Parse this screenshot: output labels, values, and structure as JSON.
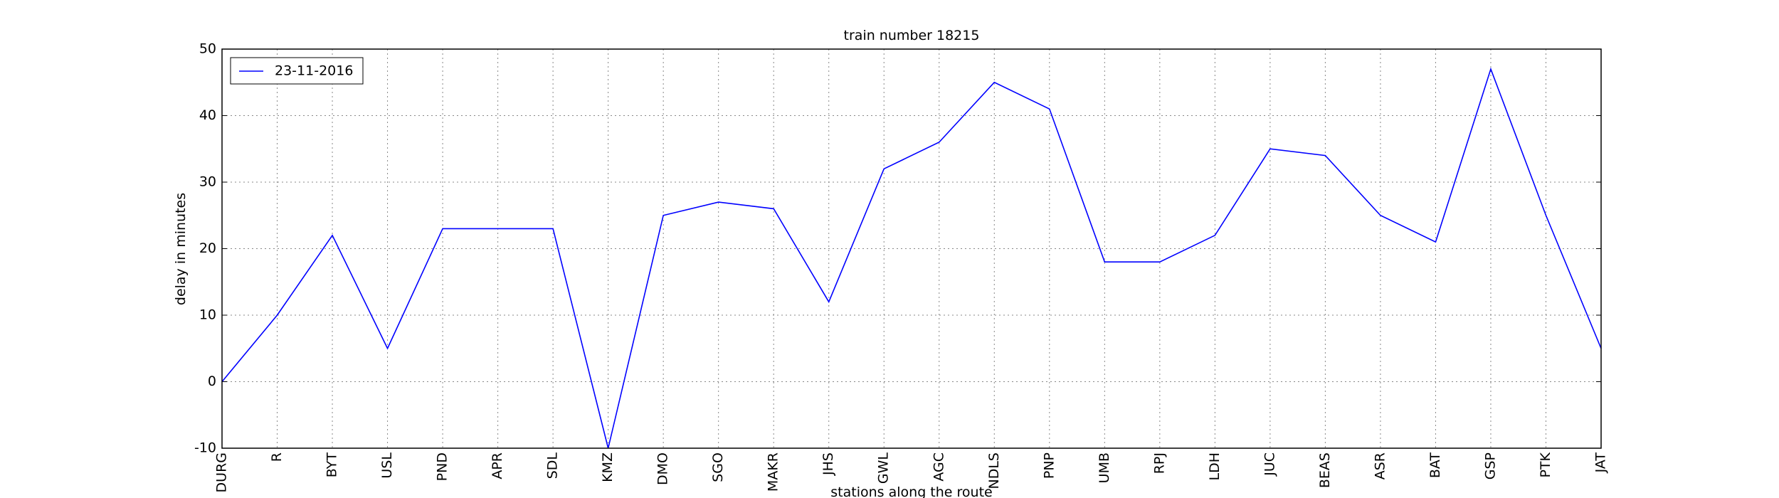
{
  "chart_data": {
    "type": "line",
    "title": "train number 18215",
    "x_label": "stations along the route",
    "y_label": "delay in minutes",
    "categories": [
      "DURG",
      "R",
      "BYT",
      "USL",
      "PND",
      "APR",
      "SDL",
      "KMZ",
      "DMO",
      "SGO",
      "MAKR",
      "JHS",
      "GWL",
      "AGC",
      "NDLS",
      "PNP",
      "UMB",
      "RPJ",
      "LDH",
      "JUC",
      "BEAS",
      "ASR",
      "BAT",
      "GSP",
      "PTK",
      "JAT"
    ],
    "series": [
      {
        "name": "23-11-2016",
        "color": "#0000ff",
        "values": [
          0,
          10,
          22,
          5,
          23,
          23,
          23,
          -10,
          25,
          27,
          26,
          12,
          32,
          36,
          45,
          41,
          18,
          18,
          22,
          35,
          34,
          25,
          21,
          47,
          25,
          5
        ]
      }
    ],
    "ylim": [
      -10,
      50
    ],
    "yticks": [
      -10,
      0,
      10,
      20,
      30,
      40,
      50
    ],
    "grid": true,
    "legend": "upper left"
  }
}
